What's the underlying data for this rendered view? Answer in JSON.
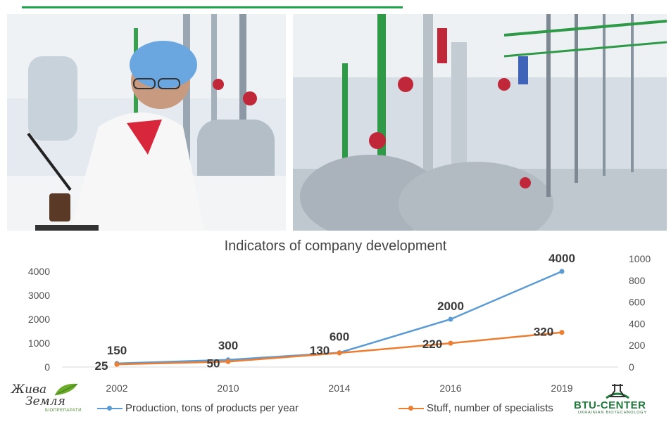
{
  "photos": [
    {
      "name": "lab-technician-photo"
    },
    {
      "name": "production-plant-photo"
    }
  ],
  "logos": {
    "left": {
      "line1": "Жива",
      "line2": "Земля",
      "tagline": "БІОПРЕПАРАТИ"
    },
    "right": {
      "brand": "BTU-CENTER",
      "tagline": "UKRAINIAN BIOTECHNOLOGY"
    }
  },
  "colors": {
    "accent_line": "#1fa34a",
    "production": "#5b9bd5",
    "staff": "#ed7d31"
  },
  "chart_data": {
    "type": "line",
    "title": "Indicators of company development",
    "categories": [
      "2002",
      "2010",
      "2014",
      "2016",
      "2019"
    ],
    "y_left": {
      "ticks": [
        "0",
        "1000",
        "2000",
        "3000",
        "4000"
      ],
      "range": [
        0,
        4000
      ]
    },
    "y_right": {
      "ticks": [
        "0",
        "200",
        "400",
        "600",
        "800",
        "1000"
      ],
      "range": [
        0,
        1000
      ]
    },
    "grid": false,
    "legend_position": "bottom",
    "series": [
      {
        "name": "Production, tons of products per year",
        "axis": "left",
        "values": [
          150,
          300,
          600,
          2000,
          4000
        ],
        "labels": [
          "150",
          "300",
          "600",
          "2000",
          "4000"
        ]
      },
      {
        "name": "Stuff, number of specialists",
        "axis": "right",
        "values": [
          25,
          50,
          130,
          220,
          320
        ],
        "labels": [
          "25",
          "50",
          "130",
          "220",
          "320"
        ]
      }
    ]
  }
}
